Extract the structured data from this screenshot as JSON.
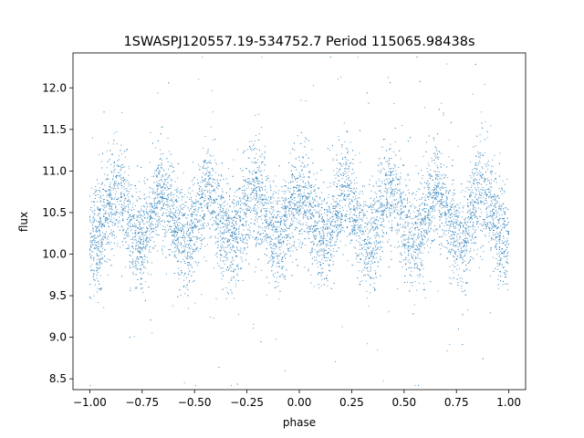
{
  "chart_data": {
    "type": "scatter",
    "title": "1SWASPJ120557.19-534752.7 Period 115065.98438s",
    "xlabel": "phase",
    "ylabel": "flux",
    "xlim": [
      -1.08,
      1.08
    ],
    "ylim": [
      8.37,
      12.42
    ],
    "xticks": [
      -1.0,
      -0.75,
      -0.5,
      -0.25,
      0.0,
      0.25,
      0.5,
      0.75,
      1.0
    ],
    "xtick_labels": [
      "−1.00",
      "−0.75",
      "−0.50",
      "−0.25",
      "0.00",
      "0.25",
      "0.50",
      "0.75",
      "1.00"
    ],
    "yticks": [
      8.5,
      9.0,
      9.5,
      10.0,
      10.5,
      11.0,
      11.5,
      12.0
    ],
    "ytick_labels": [
      "8.5",
      "9.0",
      "9.5",
      "10.0",
      "10.5",
      "11.0",
      "11.5",
      "12.0"
    ],
    "grid": false,
    "series": [
      {
        "color": "#1f77b4",
        "marker_size": 1,
        "envelope_description": "dense phase-folded light curve, flux ~10.5 baseline oscillating ~5 cycles per unit phase",
        "x_range": [
          -1.0,
          1.0
        ],
        "mean_flux": 10.45,
        "amplitude": 0.28,
        "cycles_per_unit_phase": 4.6,
        "scatter": 0.3,
        "sample_points": [
          [
            -1.0,
            10.55
          ],
          [
            -0.95,
            10.75
          ],
          [
            -0.9,
            10.6
          ],
          [
            -0.85,
            10.2
          ],
          [
            -0.8,
            10.0
          ],
          [
            -0.75,
            10.35
          ],
          [
            -0.7,
            10.65
          ],
          [
            -0.65,
            10.3
          ],
          [
            -0.6,
            10.1
          ],
          [
            -0.55,
            10.6
          ],
          [
            -0.5,
            10.7
          ],
          [
            -0.45,
            10.1
          ],
          [
            -0.4,
            10.05
          ],
          [
            -0.35,
            10.55
          ],
          [
            -0.3,
            10.7
          ],
          [
            -0.25,
            10.25
          ],
          [
            -0.2,
            10.15
          ],
          [
            -0.15,
            10.6
          ],
          [
            -0.1,
            10.75
          ],
          [
            -0.05,
            10.2
          ],
          [
            0.0,
            10.15
          ],
          [
            0.05,
            10.65
          ],
          [
            0.1,
            10.75
          ],
          [
            0.15,
            10.3
          ],
          [
            0.2,
            10.05
          ],
          [
            0.25,
            10.45
          ],
          [
            0.3,
            10.7
          ],
          [
            0.35,
            10.2
          ],
          [
            0.4,
            10.05
          ],
          [
            0.45,
            10.55
          ],
          [
            0.5,
            10.75
          ],
          [
            0.55,
            10.25
          ],
          [
            0.6,
            10.1
          ],
          [
            0.65,
            10.55
          ],
          [
            0.7,
            10.7
          ],
          [
            0.75,
            10.25
          ],
          [
            0.8,
            10.15
          ],
          [
            0.85,
            10.65
          ],
          [
            0.9,
            10.75
          ],
          [
            0.95,
            10.2
          ],
          [
            1.0,
            10.2
          ]
        ]
      }
    ]
  }
}
